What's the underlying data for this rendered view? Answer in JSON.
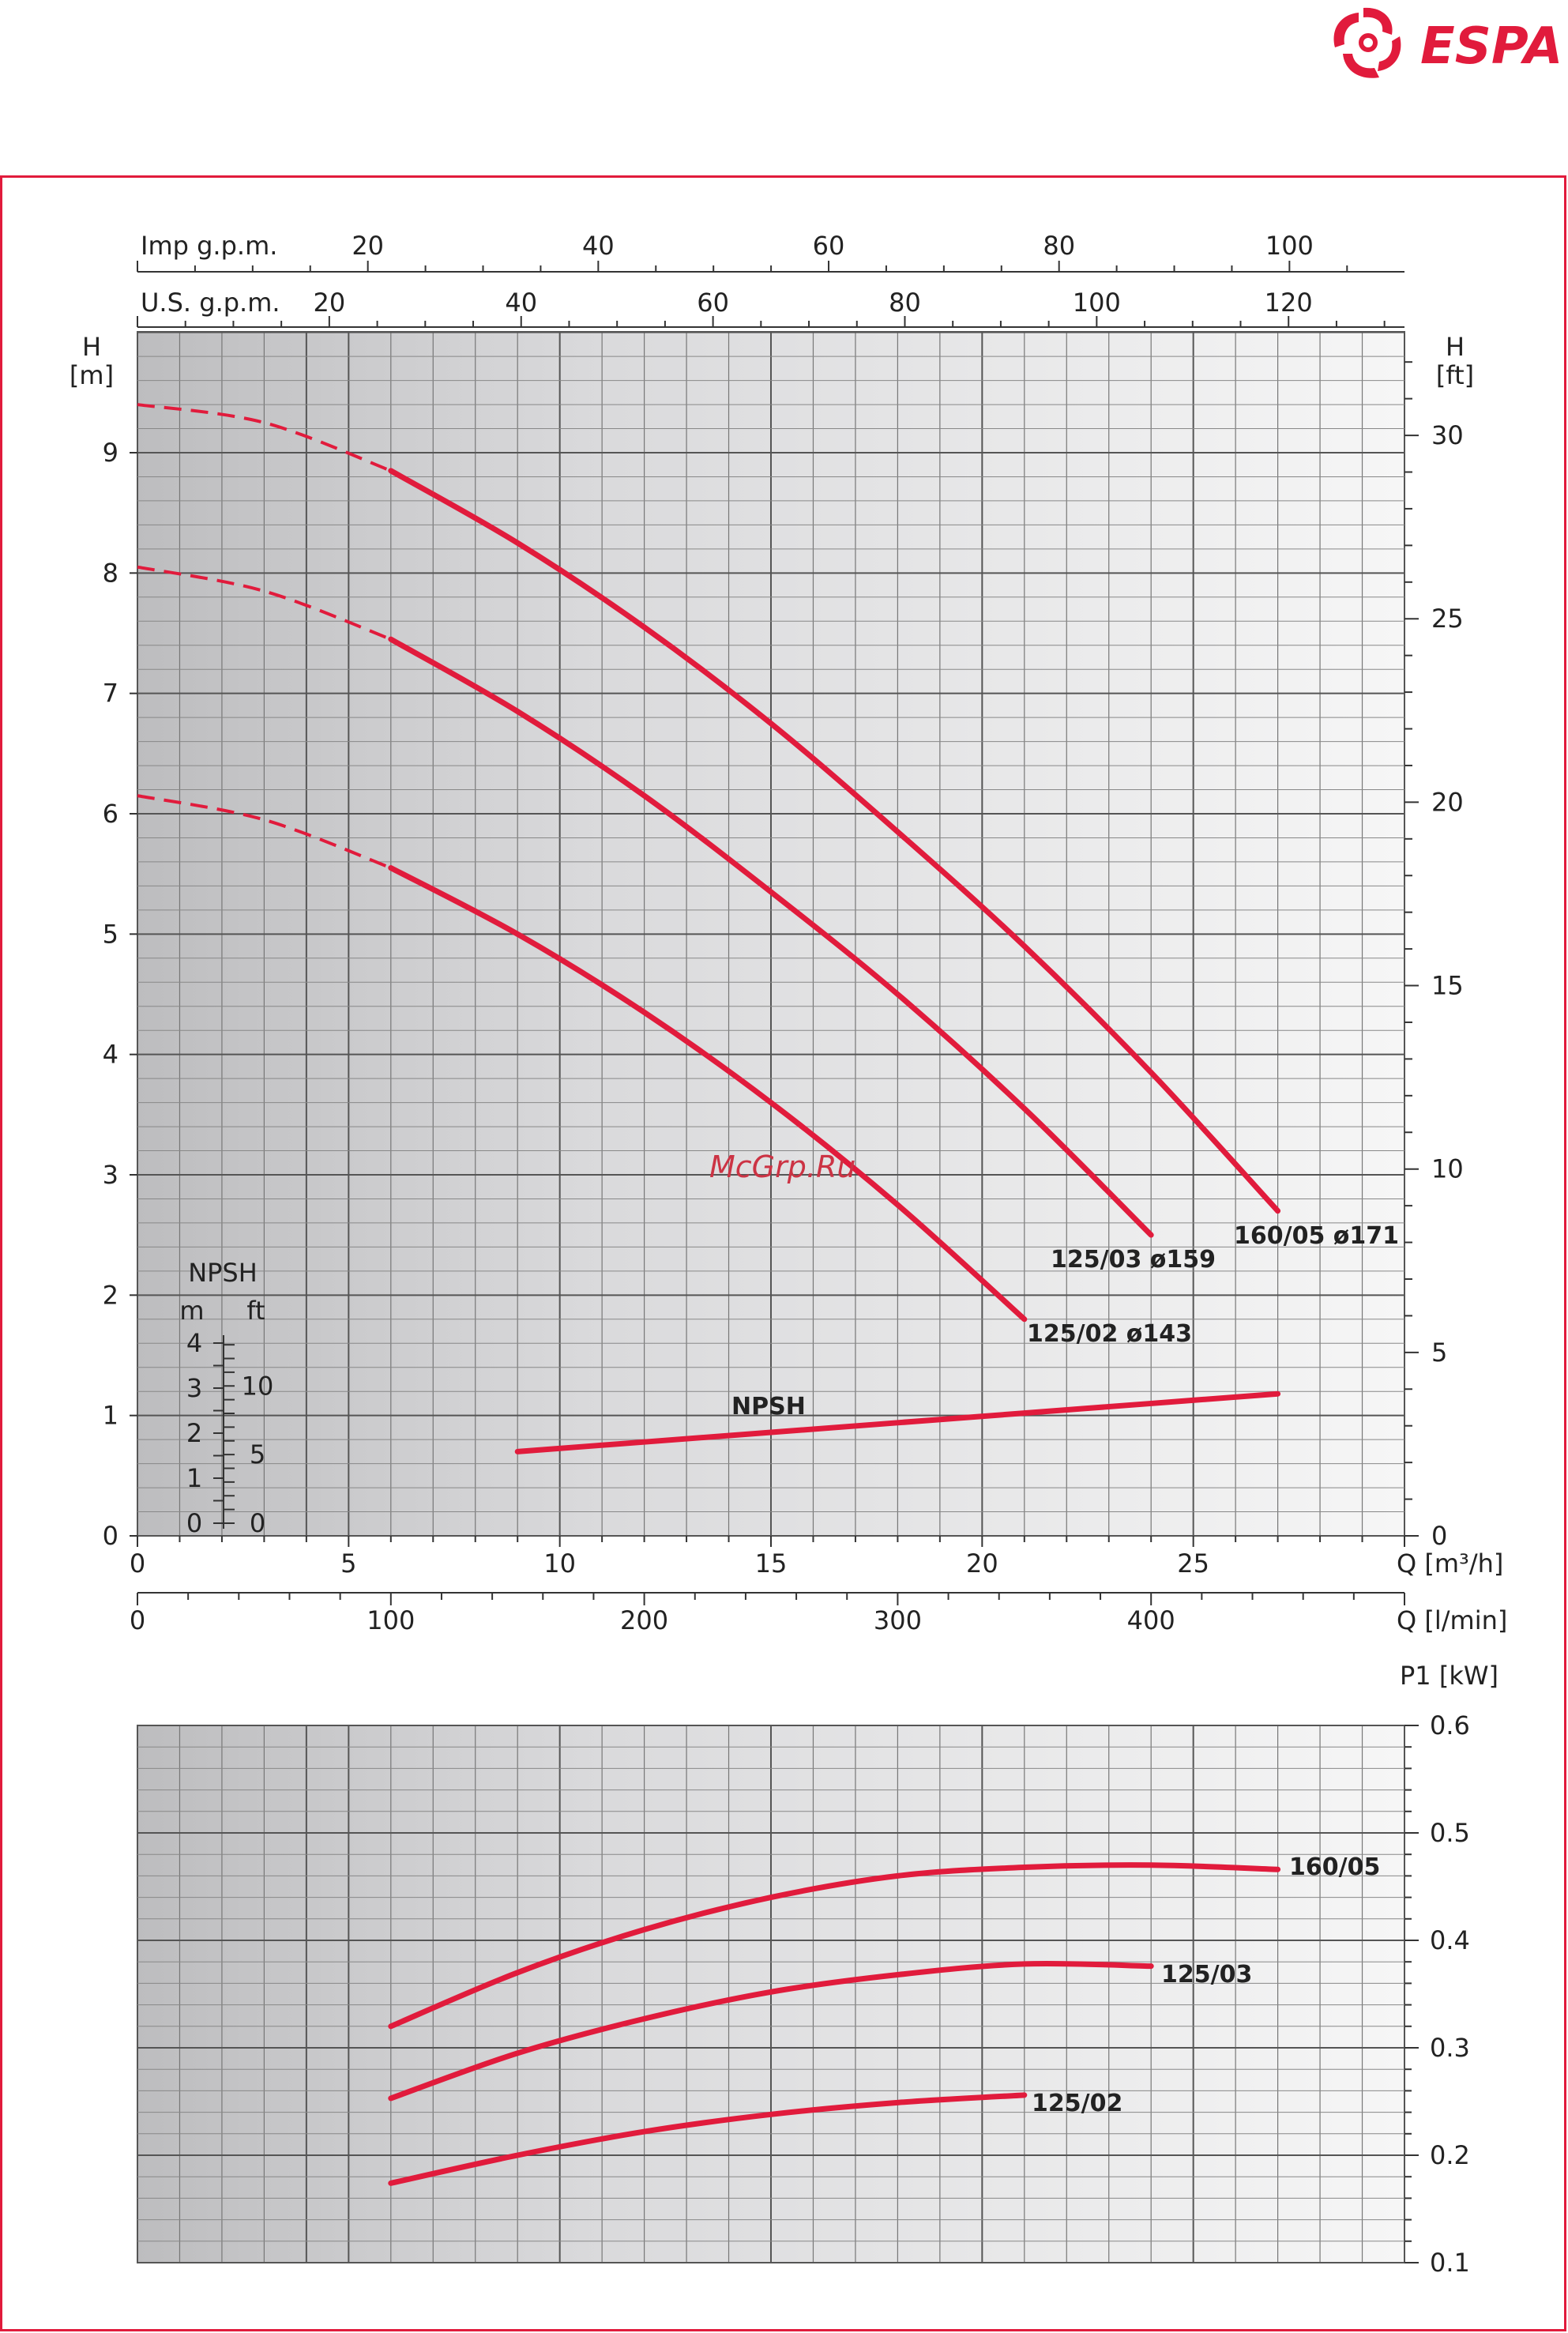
{
  "brand": {
    "name": "ESPA",
    "color": "#e11b3c"
  },
  "watermark": "McGrp.Ru",
  "chart_data": [
    {
      "type": "line",
      "name": "head_curves",
      "grid": true,
      "xlim": [
        0,
        30
      ],
      "ylim": [
        0,
        10
      ],
      "x_unit_label": "Q [m³/h]",
      "y_left_label": [
        "H",
        "[m]"
      ],
      "y_right_label": [
        "H",
        "[ft]"
      ],
      "x_ticks": [
        "0",
        "5",
        "10",
        "15",
        "20",
        "25"
      ],
      "y_ticks_left": [
        "0",
        "1",
        "2",
        "3",
        "4",
        "5",
        "6",
        "7",
        "8",
        "9"
      ],
      "y_ticks_right_ft": [
        "0",
        "5",
        "10",
        "15",
        "20",
        "25",
        "30"
      ],
      "secondary_x_axes": [
        {
          "label": "Imp g.p.m.",
          "ticks": [
            "20",
            "40",
            "60",
            "80",
            "100"
          ]
        },
        {
          "label": "U.S. g.p.m.",
          "ticks": [
            "20",
            "40",
            "60",
            "80",
            "100",
            "120"
          ]
        },
        {
          "label": "Q [l/min]",
          "ticks": [
            "0",
            "100",
            "200",
            "300",
            "400"
          ]
        }
      ],
      "series": [
        {
          "name": "160/05  ø171",
          "color": "#e11b3c",
          "dashed_until": 6,
          "x": [
            0,
            3,
            6,
            9,
            12,
            15,
            18,
            21,
            24,
            27
          ],
          "y": [
            9.4,
            9.25,
            8.85,
            8.25,
            7.55,
            6.75,
            5.85,
            4.9,
            3.85,
            2.7
          ]
        },
        {
          "name": "125/03  ø159",
          "color": "#e11b3c",
          "dashed_until": 6,
          "x": [
            0,
            3,
            6,
            9,
            12,
            15,
            18,
            21,
            24
          ],
          "y": [
            8.05,
            7.85,
            7.45,
            6.85,
            6.15,
            5.35,
            4.5,
            3.55,
            2.5
          ]
        },
        {
          "name": "125/02  ø143",
          "color": "#e11b3c",
          "dashed_until": 6,
          "x": [
            0,
            3,
            6,
            9,
            12,
            15,
            18,
            21
          ],
          "y": [
            6.15,
            5.95,
            5.55,
            5.0,
            4.35,
            3.6,
            2.75,
            1.8
          ]
        },
        {
          "name": "NPSH",
          "color": "#e11b3c",
          "dashed_until": null,
          "x": [
            9,
            12,
            15,
            18,
            21,
            24,
            27
          ],
          "y": [
            0.7,
            0.78,
            0.86,
            0.94,
            1.02,
            1.1,
            1.18
          ]
        }
      ],
      "npsh_scale": {
        "title": "NPSH",
        "m_label": "m",
        "ft_label": "ft",
        "m_ticks": [
          "0",
          "1",
          "2",
          "3",
          "4"
        ],
        "ft_ticks": [
          "0",
          "5",
          "10"
        ]
      }
    },
    {
      "type": "line",
      "name": "power_curves",
      "grid": true,
      "xlim": [
        0,
        30
      ],
      "ylim": [
        0.1,
        0.6
      ],
      "y_right_label": "P1 [kW]",
      "y_ticks_right": [
        "0.1",
        "0.2",
        "0.3",
        "0.4",
        "0.5",
        "0.6"
      ],
      "series": [
        {
          "name": "160/05",
          "color": "#e11b3c",
          "x": [
            6,
            9,
            12,
            15,
            18,
            21,
            24,
            27
          ],
          "y": [
            0.32,
            0.37,
            0.41,
            0.44,
            0.46,
            0.468,
            0.47,
            0.466
          ]
        },
        {
          "name": "125/03",
          "color": "#e11b3c",
          "x": [
            6,
            9,
            12,
            15,
            18,
            21,
            24
          ],
          "y": [
            0.253,
            0.295,
            0.327,
            0.352,
            0.368,
            0.378,
            0.376
          ]
        },
        {
          "name": "125/02",
          "color": "#e11b3c",
          "x": [
            6,
            9,
            12,
            15,
            18,
            21
          ],
          "y": [
            0.174,
            0.2,
            0.222,
            0.238,
            0.249,
            0.256
          ]
        }
      ]
    }
  ]
}
